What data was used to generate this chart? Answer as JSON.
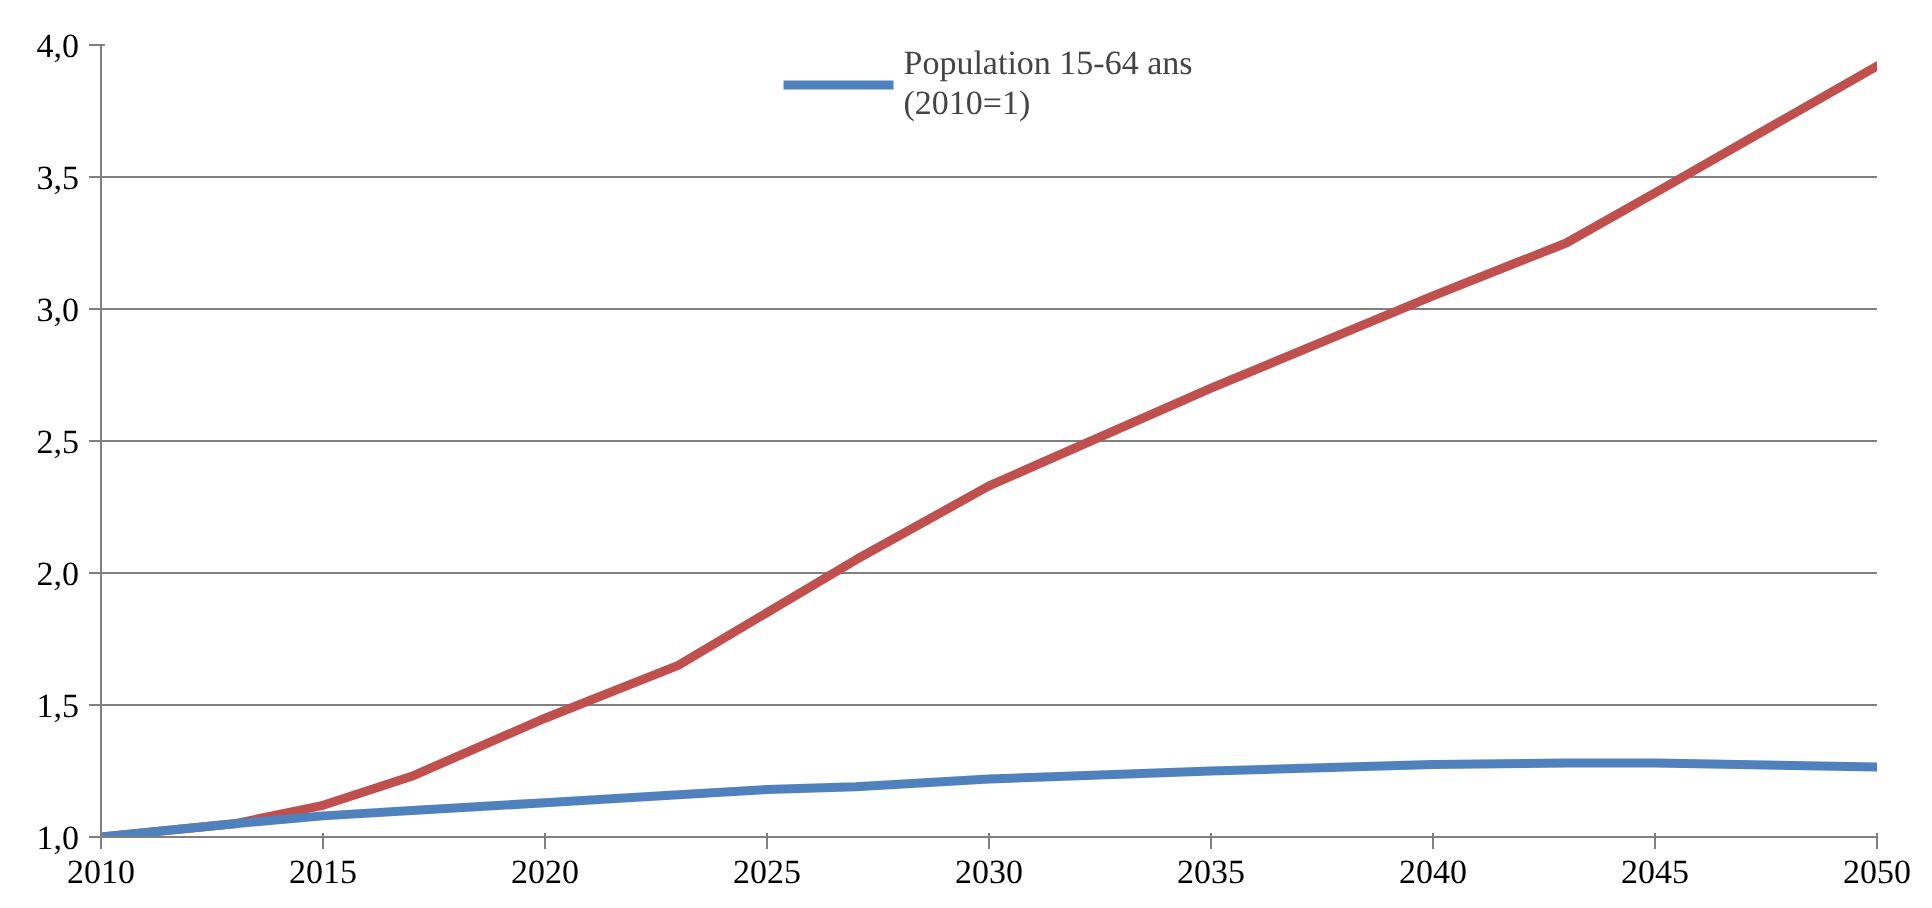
{
  "chart_data": {
    "type": "line",
    "x": [
      2010,
      2013,
      2015,
      2017,
      2020,
      2023,
      2025,
      2027,
      2030,
      2035,
      2040,
      2043,
      2045,
      2050
    ],
    "series": [
      {
        "color": "#c0504d",
        "values": [
          1.0,
          1.05,
          1.12,
          1.23,
          1.45,
          1.65,
          1.85,
          2.05,
          2.33,
          2.7,
          3.05,
          3.25,
          3.44,
          3.92
        ]
      },
      {
        "name": "Population 15-64 ans\n(2010=1)",
        "color": "#4f81bd",
        "values": [
          1.0,
          1.05,
          1.08,
          1.1,
          1.13,
          1.16,
          1.18,
          1.19,
          1.22,
          1.25,
          1.275,
          1.28,
          1.28,
          1.265
        ]
      }
    ],
    "xlim": [
      2010,
      2050
    ],
    "xticks": [
      2010,
      2015,
      2020,
      2025,
      2030,
      2035,
      2040,
      2045,
      2050
    ],
    "ylim": [
      1.0,
      4.0
    ],
    "yticks": [
      {
        "value": 1.0,
        "label": "1,0"
      },
      {
        "value": 1.5,
        "label": "1,5"
      },
      {
        "value": 2.0,
        "label": "2,0"
      },
      {
        "value": 2.5,
        "label": "2,5"
      },
      {
        "value": 3.0,
        "label": "3,0"
      },
      {
        "value": 3.5,
        "label": "3,5"
      },
      {
        "value": 4.0,
        "label": "4,0"
      }
    ],
    "grid": "y",
    "legend": "top",
    "marker": "none",
    "line_style": "solid"
  }
}
